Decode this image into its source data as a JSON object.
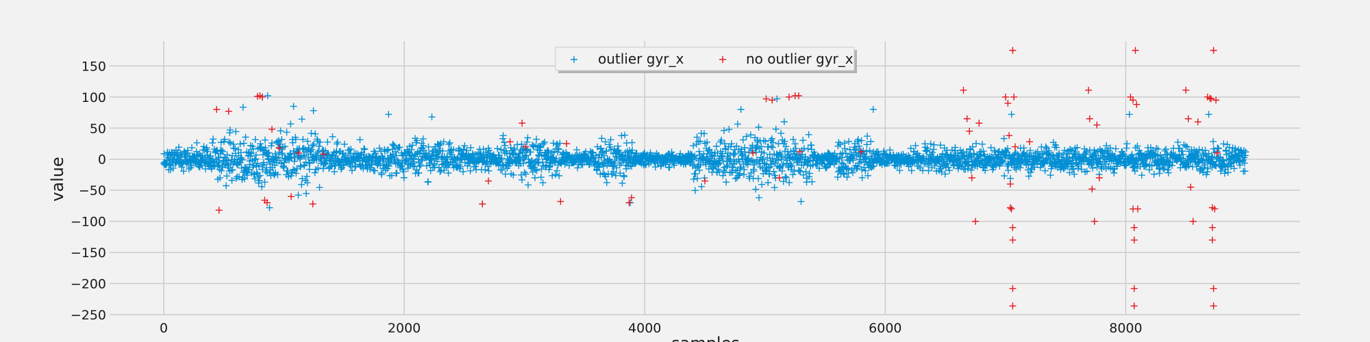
{
  "chart_data": {
    "type": "scatter",
    "title": "",
    "xlabel": "samples",
    "ylabel": "value",
    "xlim": [
      -450,
      9450
    ],
    "ylim": [
      -250,
      190
    ],
    "x_ticks": [
      0,
      2000,
      4000,
      6000,
      8000
    ],
    "y_ticks": [
      -250,
      -200,
      -150,
      -100,
      -50,
      0,
      50,
      100,
      150
    ],
    "grid": true,
    "legend_position": "top-center",
    "marker": "+",
    "n_samples": 9000,
    "series": [
      {
        "name": "outlier gyr_x",
        "color": "#008fd5",
        "note_segments": [
          [
            0,
            400,
            18
          ],
          [
            400,
            1300,
            38
          ],
          [
            1300,
            1800,
            18
          ],
          [
            1800,
            2100,
            25
          ],
          [
            2100,
            2400,
            28
          ],
          [
            2400,
            2800,
            15
          ],
          [
            2800,
            3300,
            26
          ],
          [
            3300,
            3600,
            12
          ],
          [
            3600,
            3900,
            28
          ],
          [
            3900,
            4400,
            10
          ],
          [
            4400,
            5400,
            35
          ],
          [
            5400,
            5600,
            12
          ],
          [
            5600,
            5900,
            28
          ],
          [
            5900,
            6200,
            10
          ],
          [
            6200,
            7200,
            20
          ],
          [
            7200,
            8000,
            18
          ],
          [
            8000,
            9000,
            18
          ]
        ],
        "points_sample": [
          [
            820,
            100
          ],
          [
            865,
            102
          ],
          [
            1080,
            85
          ],
          [
            1245,
            78
          ],
          [
            1870,
            72
          ],
          [
            2230,
            68
          ],
          [
            4800,
            80
          ],
          [
            5100,
            97
          ],
          [
            5900,
            80
          ],
          [
            7050,
            72
          ],
          [
            8030,
            72
          ],
          [
            8690,
            72
          ],
          [
            880,
            -78
          ],
          [
            2650,
            -72
          ],
          [
            3880,
            -70
          ],
          [
            5300,
            -68
          ],
          [
            4950,
            -62
          ]
        ]
      },
      {
        "name": "no outlier gyr_x",
        "color": "#e5171d",
        "points": [
          [
            440,
            80
          ],
          [
            460,
            -82
          ],
          [
            540,
            77
          ],
          [
            780,
            101
          ],
          [
            800,
            102
          ],
          [
            820,
            100
          ],
          [
            840,
            -66
          ],
          [
            860,
            -70
          ],
          [
            900,
            48
          ],
          [
            960,
            18
          ],
          [
            1060,
            -60
          ],
          [
            1120,
            10
          ],
          [
            1240,
            -72
          ],
          [
            1330,
            8
          ],
          [
            2650,
            -72
          ],
          [
            2700,
            -35
          ],
          [
            2880,
            28
          ],
          [
            2980,
            58
          ],
          [
            3010,
            20
          ],
          [
            3300,
            -68
          ],
          [
            3350,
            25
          ],
          [
            3870,
            -70
          ],
          [
            3890,
            -62
          ],
          [
            4500,
            -35
          ],
          [
            4900,
            10
          ],
          [
            5010,
            97
          ],
          [
            5060,
            95
          ],
          [
            5120,
            -30
          ],
          [
            5200,
            100
          ],
          [
            5250,
            102
          ],
          [
            5280,
            102
          ],
          [
            5290,
            12
          ],
          [
            5800,
            12
          ],
          [
            6650,
            111
          ],
          [
            6680,
            65
          ],
          [
            6700,
            45
          ],
          [
            6720,
            -30
          ],
          [
            6750,
            -100
          ],
          [
            6780,
            58
          ],
          [
            7000,
            100
          ],
          [
            7020,
            90
          ],
          [
            7030,
            38
          ],
          [
            7040,
            -40
          ],
          [
            7040,
            -78
          ],
          [
            7050,
            -80
          ],
          [
            7060,
            175
          ],
          [
            7060,
            -110
          ],
          [
            7060,
            -130
          ],
          [
            7060,
            -208
          ],
          [
            7060,
            -236
          ],
          [
            7070,
            100
          ],
          [
            7080,
            20
          ],
          [
            7200,
            28
          ],
          [
            7690,
            111
          ],
          [
            7700,
            65
          ],
          [
            7720,
            -48
          ],
          [
            7740,
            -100
          ],
          [
            7760,
            55
          ],
          [
            7780,
            -30
          ],
          [
            8040,
            100
          ],
          [
            8060,
            95
          ],
          [
            8060,
            -80
          ],
          [
            8070,
            -110
          ],
          [
            8070,
            -130
          ],
          [
            8070,
            -208
          ],
          [
            8070,
            -236
          ],
          [
            8080,
            175
          ],
          [
            8090,
            88
          ],
          [
            8100,
            -80
          ],
          [
            8500,
            111
          ],
          [
            8520,
            65
          ],
          [
            8540,
            -45
          ],
          [
            8560,
            -100
          ],
          [
            8600,
            60
          ],
          [
            8680,
            100
          ],
          [
            8700,
            98
          ],
          [
            8710,
            97
          ],
          [
            8720,
            -78
          ],
          [
            8720,
            -110
          ],
          [
            8720,
            -130
          ],
          [
            8730,
            175
          ],
          [
            8730,
            -208
          ],
          [
            8730,
            -236
          ],
          [
            8740,
            -80
          ],
          [
            8750,
            95
          ],
          [
            8760,
            10
          ]
        ]
      }
    ]
  }
}
